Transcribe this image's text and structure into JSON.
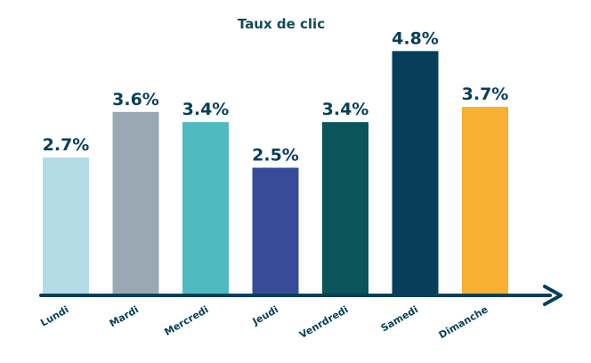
{
  "chart_data": {
    "type": "bar",
    "title": "Taux de clic",
    "xlabel": "",
    "ylabel": "",
    "categories": [
      "Lundi",
      "Mardi",
      "Mercredi",
      "Jeudi",
      "Venrdredi",
      "Samedi",
      "Dimanche"
    ],
    "values": [
      2.7,
      3.6,
      3.4,
      2.5,
      3.4,
      4.8,
      3.7
    ],
    "value_labels": [
      "2.7%",
      "3.6%",
      "3.4%",
      "2.5%",
      "3.4%",
      "4.8%",
      "3.7%"
    ],
    "colors": [
      "#b3dce6",
      "#99a8b2",
      "#4fbac0",
      "#364c9b",
      "#0b5459",
      "#073f5a",
      "#f7b032"
    ],
    "ylim": [
      0,
      5
    ],
    "grid": false,
    "legend": "none"
  },
  "style": {
    "title_color": "#124b55",
    "label_color": "#063f5a",
    "axis_color": "#063f5a"
  }
}
